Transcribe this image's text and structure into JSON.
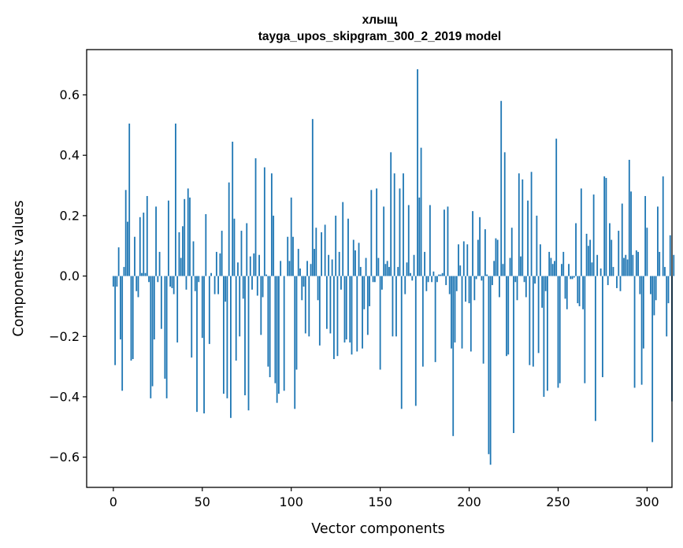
{
  "chart_data": {
    "type": "bar",
    "title_line1": "хлыщ",
    "title_line2": "tayga_upos_skipgram_300_2_2019 model",
    "xlabel": "Vector components",
    "ylabel": "Components values",
    "xlim": [
      -15,
      314
    ],
    "ylim": [
      -0.7,
      0.75
    ],
    "xticks": [
      0,
      50,
      100,
      150,
      200,
      250,
      300
    ],
    "yticks": [
      -0.6,
      -0.4,
      -0.2,
      0.0,
      0.2,
      0.4,
      0.6
    ],
    "ytick_labels": [
      "−0.6",
      "−0.4",
      "−0.2",
      "0.0",
      "0.2",
      "0.4",
      "0.6"
    ],
    "grid": false,
    "bar_color": "#1f77b4",
    "values": [
      -0.035,
      -0.295,
      -0.035,
      0.095,
      -0.21,
      -0.38,
      0.03,
      0.285,
      0.18,
      0.505,
      -0.28,
      -0.275,
      0.13,
      -0.05,
      -0.07,
      0.195,
      0.01,
      0.21,
      0.01,
      0.265,
      -0.02,
      -0.405,
      -0.365,
      -0.21,
      0.23,
      -0.02,
      0.08,
      -0.175,
      0.0,
      -0.34,
      -0.405,
      0.25,
      -0.035,
      -0.04,
      -0.06,
      0.505,
      -0.22,
      0.145,
      0.06,
      0.165,
      0.255,
      -0.045,
      0.29,
      0.26,
      -0.27,
      0.115,
      -0.05,
      -0.45,
      -0.02,
      0.0,
      -0.205,
      -0.455,
      0.205,
      0.0,
      -0.225,
      0.01,
      0.0,
      -0.06,
      0.08,
      -0.06,
      0.075,
      0.15,
      -0.39,
      -0.085,
      -0.405,
      0.31,
      -0.47,
      0.445,
      0.19,
      -0.28,
      0.045,
      -0.2,
      0.15,
      -0.075,
      -0.395,
      0.175,
      -0.445,
      0.065,
      -0.045,
      0.075,
      0.39,
      -0.065,
      0.07,
      -0.195,
      -0.07,
      0.36,
      0.005,
      -0.3,
      -0.335,
      0.34,
      0.2,
      -0.355,
      -0.42,
      -0.39,
      0.05,
      0.0,
      -0.38,
      0.0,
      0.13,
      0.05,
      0.26,
      0.13,
      -0.44,
      -0.31,
      0.09,
      0.025,
      -0.08,
      -0.035,
      -0.19,
      0.05,
      -0.2,
      0.04,
      0.52,
      0.09,
      0.16,
      -0.08,
      -0.23,
      0.145,
      0.0,
      0.17,
      -0.175,
      0.07,
      -0.19,
      0.055,
      -0.275,
      0.2,
      -0.265,
      0.08,
      -0.045,
      0.245,
      -0.22,
      -0.21,
      0.19,
      -0.22,
      -0.26,
      0.12,
      0.085,
      -0.25,
      0.11,
      0.03,
      -0.24,
      -0.11,
      0.06,
      -0.195,
      -0.1,
      0.285,
      -0.02,
      -0.02,
      0.29,
      0.06,
      -0.31,
      -0.045,
      0.23,
      0.04,
      0.05,
      0.03,
      0.41,
      -0.2,
      0.34,
      -0.2,
      0.03,
      0.29,
      -0.44,
      0.34,
      -0.06,
      0.045,
      0.235,
      0.01,
      -0.015,
      0.07,
      -0.43,
      0.685,
      0.26,
      0.425,
      -0.3,
      0.08,
      -0.05,
      -0.02,
      0.235,
      -0.02,
      0.015,
      -0.285,
      -0.02,
      0.005,
      0.005,
      0.01,
      0.22,
      -0.03,
      0.23,
      -0.06,
      -0.24,
      -0.53,
      -0.22,
      -0.05,
      0.105,
      0.035,
      -0.24,
      0.115,
      -0.085,
      0.105,
      -0.09,
      -0.25,
      0.215,
      -0.08,
      -0.01,
      0.12,
      0.195,
      -0.015,
      -0.29,
      0.155,
      0.005,
      -0.59,
      -0.625,
      -0.03,
      0.05,
      0.125,
      0.12,
      -0.07,
      0.58,
      0.04,
      0.41,
      -0.265,
      -0.26,
      0.06,
      0.16,
      -0.52,
      -0.02,
      -0.08,
      0.34,
      0.065,
      0.32,
      -0.02,
      -0.07,
      0.25,
      -0.295,
      0.345,
      -0.3,
      -0.025,
      0.2,
      -0.255,
      0.105,
      -0.105,
      -0.4,
      -0.05,
      -0.38,
      0.08,
      0.06,
      0.04,
      0.05,
      0.455,
      -0.37,
      -0.355,
      0.04,
      0.08,
      -0.075,
      -0.11,
      0.04,
      -0.01,
      -0.01,
      -0.005,
      0.175,
      -0.09,
      -0.1,
      0.29,
      -0.11,
      -0.355,
      0.14,
      0.1,
      0.12,
      0.045,
      0.27,
      -0.48,
      0.07,
      0.0,
      0.025,
      -0.335,
      0.33,
      0.325,
      -0.03,
      0.175,
      0.12,
      0.03,
      0.0,
      -0.04,
      0.15,
      -0.05,
      0.24,
      0.06,
      0.07,
      0.055,
      0.385,
      0.28,
      0.07,
      -0.37,
      0.085,
      0.08,
      -0.06,
      -0.36,
      -0.24,
      0.265,
      0.16,
      0.0,
      -0.06,
      -0.55,
      -0.13,
      -0.08,
      0.23,
      0.08,
      0.0,
      0.33,
      0.03,
      -0.2,
      -0.09,
      0.135,
      -0.415,
      0.07
    ]
  }
}
